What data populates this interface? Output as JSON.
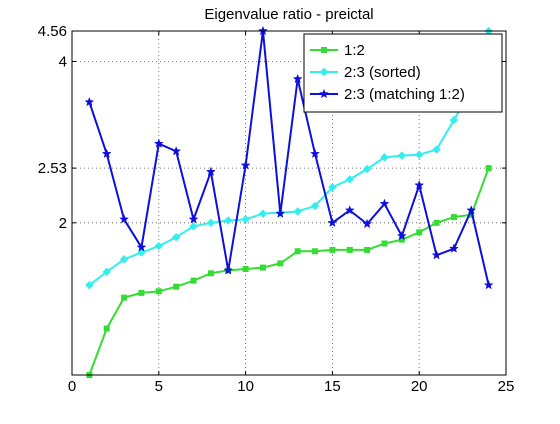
{
  "chart_data": {
    "type": "line",
    "title": "Eigenvalue ratio - preictal",
    "xlabel": "",
    "ylabel": "",
    "xlim": [
      0,
      25
    ],
    "ylim": [
      1.04,
      4.56
    ],
    "yscale": "log",
    "x_ticks": [
      "0",
      "5",
      "10",
      "15",
      "20",
      "25"
    ],
    "y_ticks": [
      {
        "value": 2,
        "label": "2"
      },
      {
        "value": 2.53,
        "label": "2.53"
      },
      {
        "value": 4,
        "label": "4"
      },
      {
        "value": 4.56,
        "label": "4.56"
      }
    ],
    "grid": true,
    "legend_position": "top-right",
    "x": [
      1,
      2,
      3,
      4,
      5,
      6,
      7,
      8,
      9,
      10,
      11,
      12,
      13,
      14,
      15,
      16,
      17,
      18,
      19,
      20,
      21,
      22,
      23,
      24
    ],
    "series": [
      {
        "name": "1:2",
        "color": "#33dd33",
        "marker": "square",
        "values": [
          1.04,
          1.27,
          1.45,
          1.48,
          1.49,
          1.52,
          1.56,
          1.61,
          1.63,
          1.64,
          1.65,
          1.68,
          1.77,
          1.77,
          1.78,
          1.78,
          1.78,
          1.83,
          1.86,
          1.92,
          2.0,
          2.05,
          2.07,
          2.53
        ]
      },
      {
        "name": "2:3 (sorted)",
        "color": "#33eeee",
        "marker": "diamond",
        "values": [
          1.53,
          1.62,
          1.71,
          1.76,
          1.81,
          1.88,
          1.97,
          2.0,
          2.02,
          2.03,
          2.08,
          2.09,
          2.1,
          2.15,
          2.33,
          2.41,
          2.52,
          2.65,
          2.67,
          2.68,
          2.74,
          3.11,
          3.54,
          4.56
        ]
      },
      {
        "name": "2:3 (matching 1:2)",
        "color": "#0f0fdd",
        "marker": "star",
        "values": [
          3.36,
          2.69,
          2.03,
          1.8,
          2.81,
          2.72,
          2.03,
          2.49,
          1.63,
          2.56,
          4.56,
          2.08,
          3.71,
          2.69,
          2.0,
          2.11,
          1.99,
          2.17,
          1.89,
          2.35,
          1.74,
          1.79,
          2.11,
          1.53
        ]
      }
    ]
  }
}
